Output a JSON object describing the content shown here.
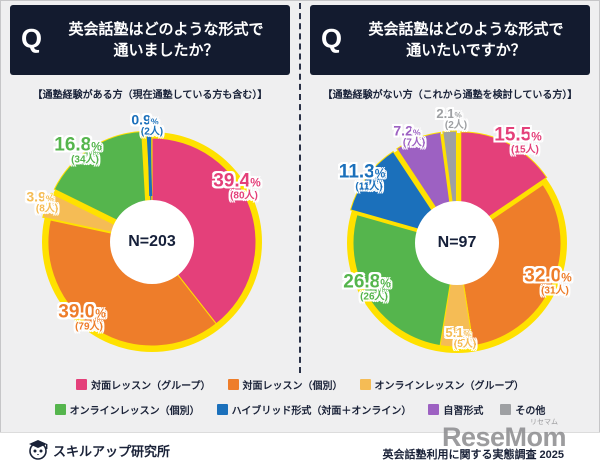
{
  "page": {
    "bg": "#EFEFF0",
    "navy": "#131B2F",
    "ring_yellow": "#FFE100",
    "q_mark": "Q"
  },
  "panels": [
    {
      "q_mark": "Q",
      "title_line1": "英会話塾はどのような形式で",
      "title_line2": "通いましたか？",
      "subtitle": "【通塾経験がある方（現在通塾している方も含む）】",
      "n_label": "N=203"
    },
    {
      "q_mark": "Q",
      "title_line1": "英会話塾はどのような形式で",
      "title_line2": "通いたいですか？",
      "subtitle": "【通塾経験がない方（これから通塾を検討している方）】",
      "n_label": "N=97"
    }
  ],
  "chart_data": [
    {
      "type": "pie",
      "title": "英会話塾はどのような形式で通いましたか？",
      "subtitle": "【通塾経験がある方（現在通塾している方も含む）】",
      "n_total": 203,
      "donut": true,
      "start_angle_deg": 0,
      "direction": "clockwise",
      "slices": [
        {
          "label": "対面レッスン（グループ）",
          "pct": 39.4,
          "count": 80,
          "color": "#E4407A",
          "exploded": false,
          "leader": false
        },
        {
          "label": "対面レッスン（個別）",
          "pct": 39.0,
          "count": 79,
          "color": "#EE7D2A",
          "exploded": false,
          "leader": false
        },
        {
          "label": "オンラインレッスン（グループ）",
          "pct": 3.9,
          "count": 8,
          "color": "#F5BC55",
          "exploded": true,
          "leader": false
        },
        {
          "label": "オンラインレッスン（個別）",
          "pct": 16.8,
          "count": 34,
          "color": "#55B54D",
          "exploded": true,
          "leader": false
        },
        {
          "label": "ハイブリッド形式（対面＋オンライン）",
          "pct": 0.9,
          "count": 2,
          "color": "#1B70BB",
          "exploded": true,
          "leader": true
        }
      ]
    },
    {
      "type": "pie",
      "title": "英会話塾はどのような形式で通いたいですか？",
      "subtitle": "【通塾経験がない方（これから通塾を検討している方）】",
      "n_total": 97,
      "donut": true,
      "start_angle_deg": 0,
      "direction": "clockwise",
      "slices": [
        {
          "label": "対面レッスン（グループ）",
          "pct": 15.5,
          "count": 15,
          "color": "#E4407A",
          "exploded": true,
          "leader": false
        },
        {
          "label": "対面レッスン（個別）",
          "pct": 32.0,
          "count": 31,
          "color": "#EE7D2A",
          "exploded": false,
          "leader": false
        },
        {
          "label": "オンラインレッスン（グループ）",
          "pct": 5.1,
          "count": 5,
          "color": "#F5BC55",
          "exploded": false,
          "leader": false
        },
        {
          "label": "オンラインレッスン（個別）",
          "pct": 26.8,
          "count": 26,
          "color": "#55B54D",
          "exploded": false,
          "leader": false
        },
        {
          "label": "ハイブリッド形式（対面＋オンライン）",
          "pct": 11.3,
          "count": 11,
          "color": "#1B70BB",
          "exploded": true,
          "leader": false
        },
        {
          "label": "自習形式",
          "pct": 7.2,
          "count": 7,
          "color": "#9D61C2",
          "exploded": true,
          "leader": false
        },
        {
          "label": "その他",
          "pct": 2.1,
          "count": 2,
          "color": "#9EA0A3",
          "exploded": true,
          "leader": true
        }
      ]
    }
  ],
  "legend": {
    "rows": [
      [
        {
          "label": "対面レッスン（グループ）",
          "color": "#E4407A"
        },
        {
          "label": "対面レッスン（個別）",
          "color": "#EE7D2A"
        },
        {
          "label": "オンラインレッスン（グループ）",
          "color": "#F5BC55"
        }
      ],
      [
        {
          "label": "オンラインレッスン（個別）",
          "color": "#55B54D"
        },
        {
          "label": "ハイブリッド形式（対面＋オンライン）",
          "color": "#1B70BB"
        },
        {
          "label": "自習形式",
          "color": "#9D61C2"
        },
        {
          "label": "その他",
          "color": "#9EA0A3"
        }
      ]
    ]
  },
  "footer": {
    "brand": "スキルアップ研究所",
    "survey_title": "英会話塾利用に関する実態調査 2025",
    "watermark_main": "ReseMom",
    "watermark_kana": "リセマム"
  }
}
